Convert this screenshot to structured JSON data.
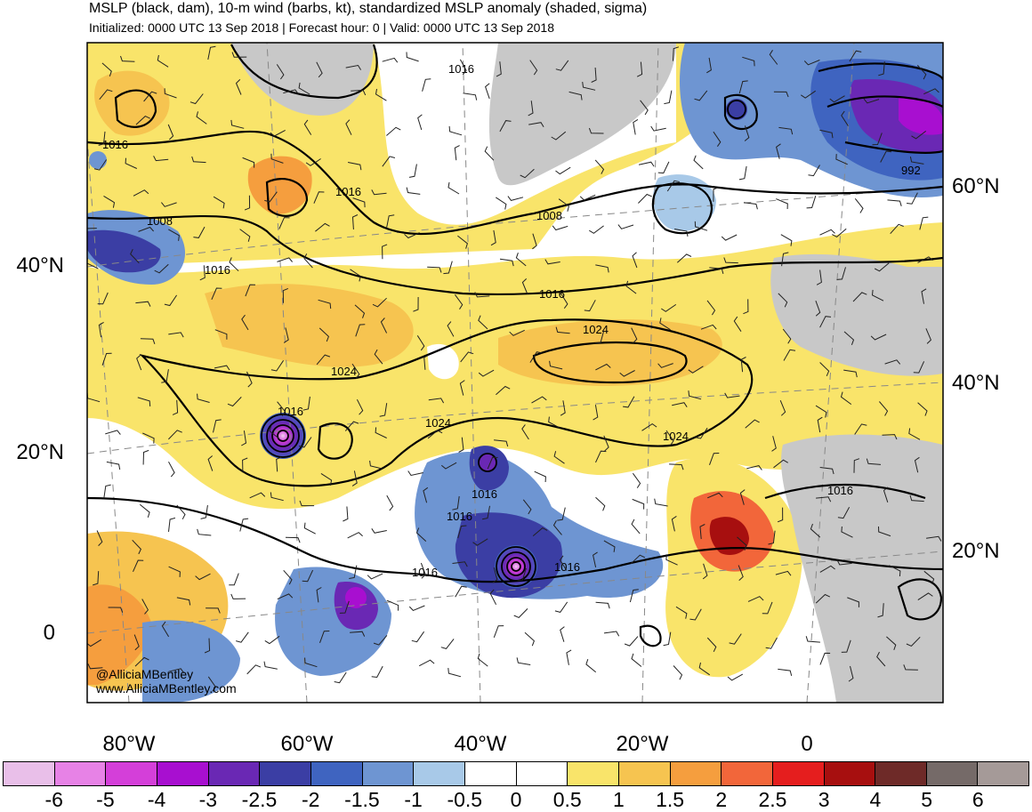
{
  "header": {
    "title": "MSLP (black, dam), 10-m wind (barbs, kt), standardized MSLP anomaly (shaded, sigma)",
    "subtitle": "Initialized: 0000 UTC 13 Sep 2018 | Forecast hour: 0 | Valid: 0000 UTC 13 Sep 2018"
  },
  "map": {
    "lat_labels_left": [
      "40°N",
      "20°N",
      "0"
    ],
    "lat_labels_right": [
      "60°N",
      "40°N",
      "20°N"
    ],
    "lon_labels": [
      "80°W",
      "60°W",
      "40°W",
      "20°W",
      "0"
    ],
    "isobar_labels": [
      "1016",
      "1016",
      "1016",
      "1008",
      "1016",
      "1016",
      "1008",
      "992",
      "1016",
      "1024",
      "1024",
      "1024",
      "1024",
      "1016",
      "1016",
      "1016",
      "1016",
      "1016"
    ],
    "credit_handle": "@AlliciaMBentley",
    "credit_url": "www.AlliciaMBentley.com"
  },
  "colorbar": {
    "colors": [
      "#e9bfe9",
      "#e782e6",
      "#d43fd9",
      "#a80fd0",
      "#6a28b4",
      "#3b3ea4",
      "#3f64c0",
      "#6e95d2",
      "#a8c9e8",
      "#ffffff",
      "#ffffff",
      "#f9e46a",
      "#f6c450",
      "#f59e3e",
      "#f2663a",
      "#e51e1e",
      "#a70f0f",
      "#6e2a28",
      "#756a68",
      "#a59a98"
    ],
    "tick_labels": [
      "-6",
      "-5",
      "-4",
      "-3",
      "-2.5",
      "-2",
      "-1.5",
      "-1",
      "-0.5",
      "0",
      "0.5",
      "1",
      "1.5",
      "2",
      "2.5",
      "3",
      "4",
      "5",
      "6"
    ]
  }
}
